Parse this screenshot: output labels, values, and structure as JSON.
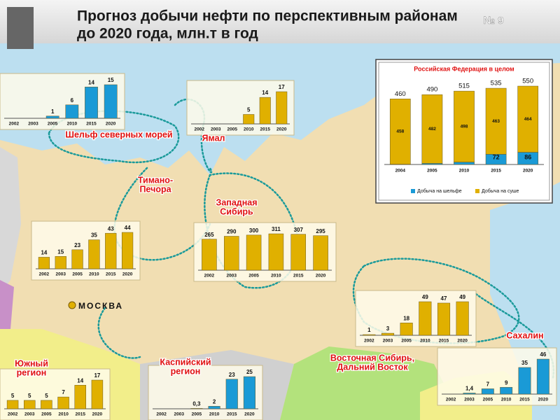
{
  "header": {
    "title": [
      "Прогноз добычи нефти по перспективным районам",
      "до 2020 года, млн.т в год"
    ],
    "number": "№ 9"
  },
  "capital": "МОСКВА",
  "chart_data": [
    {
      "type": "bar",
      "title": [
        "Шельф северных морей"
      ],
      "categories": [
        "2002",
        "2003",
        "2005",
        "2010",
        "2015",
        "2020"
      ],
      "values": [
        null,
        null,
        1,
        6,
        14,
        15
      ],
      "color": "#1a9ad6"
    },
    {
      "type": "bar",
      "title": [
        "Ямал"
      ],
      "categories": [
        "2002",
        "2003",
        "2005",
        "2010",
        "2015",
        "2020"
      ],
      "values": [
        null,
        null,
        null,
        5,
        14,
        17
      ],
      "color": "#e0b000"
    },
    {
      "type": "bar",
      "title": [
        "Тимано-",
        "Печора"
      ],
      "categories": [
        "2002",
        "2003",
        "2005",
        "2010",
        "2015",
        "2020"
      ],
      "values": [
        14,
        15,
        23,
        35,
        43,
        44
      ],
      "color": "#e0b000"
    },
    {
      "type": "bar",
      "title": [
        "Западная",
        "Сибирь"
      ],
      "categories": [
        "2002",
        "2003",
        "2005",
        "2010",
        "2015",
        "2020"
      ],
      "values": [
        265,
        290,
        300,
        311,
        307,
        295
      ],
      "color": "#e0b000"
    },
    {
      "type": "bar",
      "title": [
        "Восточная Сибирь,",
        "Дальний Восток"
      ],
      "categories": [
        "2002",
        "2003",
        "2005",
        "2010",
        "2015",
        "2020"
      ],
      "values": [
        1,
        3,
        18,
        49,
        47,
        49
      ],
      "color": "#e0b000"
    },
    {
      "type": "bar",
      "title": [
        "Сахалин"
      ],
      "categories": [
        "2002",
        "2003",
        "2005",
        "2010",
        "2015",
        "2020"
      ],
      "values": [
        null,
        1.4,
        7,
        9,
        35,
        46
      ],
      "value_labels": [
        null,
        "1,4",
        "7",
        "9",
        "35",
        "46"
      ],
      "color": "#1a9ad6"
    },
    {
      "type": "bar",
      "title": [
        "Каспийский",
        "регион"
      ],
      "categories": [
        "2002",
        "2003",
        "2005",
        "2010",
        "2015",
        "2020"
      ],
      "values": [
        null,
        null,
        0.3,
        2,
        23,
        25
      ],
      "value_labels": [
        null,
        null,
        "0,3",
        "2",
        "23",
        "25"
      ],
      "color": "#1a9ad6"
    },
    {
      "type": "bar",
      "title": [
        "Южный",
        "регион"
      ],
      "categories": [
        "2002",
        "2003",
        "2005",
        "2010",
        "2015",
        "2020"
      ],
      "values": [
        5,
        5,
        5,
        7,
        14,
        17
      ],
      "color": "#e0b000"
    },
    {
      "type": "stacked_bar",
      "title": [
        "Российская Федерация в целом"
      ],
      "categories": [
        "2004",
        "2005",
        "2010",
        "2015",
        "2020"
      ],
      "series": [
        {
          "name": "Добыча на шельфе",
          "color": "#1a9ad6",
          "values": [
            2,
            8,
            17,
            72,
            86
          ]
        },
        {
          "name": "Добыча на суше",
          "color": "#e0b000",
          "values": [
            458,
            482,
            498,
            463,
            464
          ]
        }
      ],
      "totals": [
        460,
        490,
        515,
        535,
        550
      ]
    }
  ]
}
